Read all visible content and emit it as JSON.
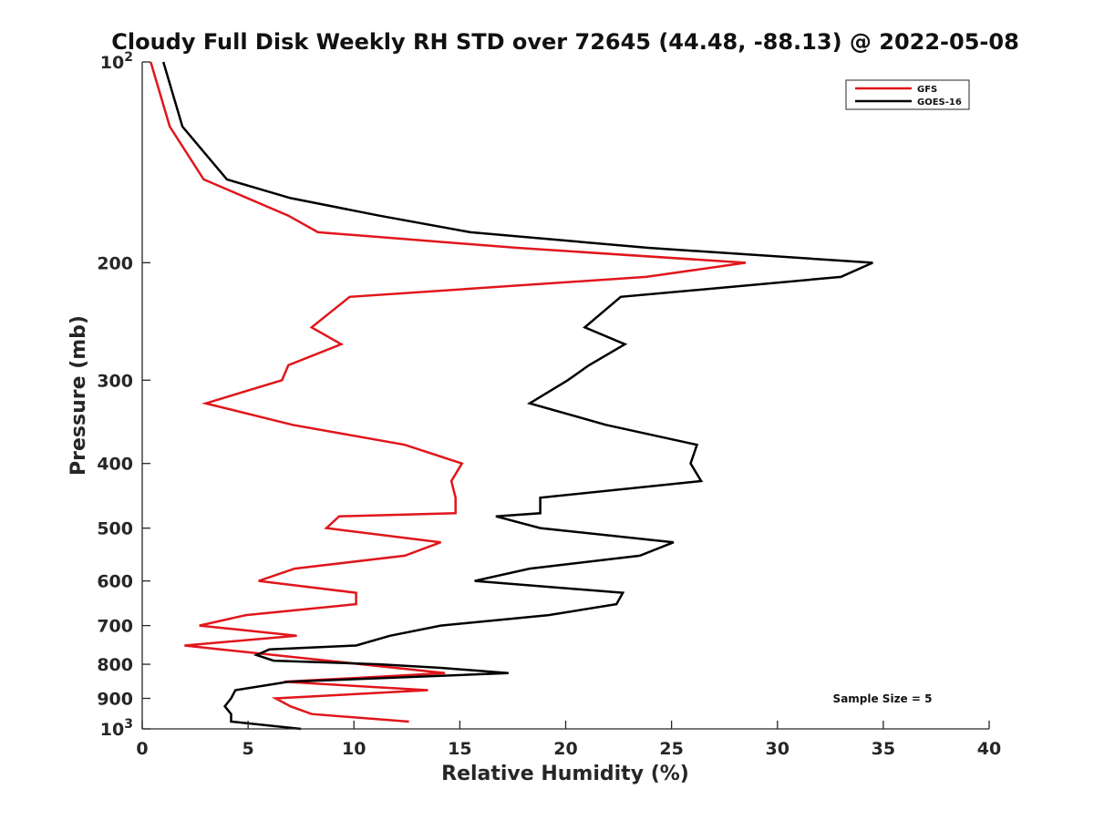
{
  "chart_data": {
    "type": "line",
    "title": "Cloudy Full Disk Weekly RH STD over 72645 (44.48, -88.13) @ 2022-05-08",
    "xlabel": "Relative Humidity (%)",
    "ylabel": "Pressure (mb)",
    "xlim": [
      0,
      40
    ],
    "ylim": [
      100,
      1000
    ],
    "yscale": "log",
    "y_reversed": true,
    "grid": false,
    "legend_position": "top-right",
    "x_ticks": [
      "0",
      "5",
      "10",
      "15",
      "20",
      "25",
      "30",
      "35",
      "40"
    ],
    "y_ticks": [
      {
        "value": 100,
        "label": "10",
        "sup": "2"
      },
      {
        "value": 200,
        "label": "200",
        "sup": ""
      },
      {
        "value": 300,
        "label": "300",
        "sup": ""
      },
      {
        "value": 400,
        "label": "400",
        "sup": ""
      },
      {
        "value": 500,
        "label": "500",
        "sup": ""
      },
      {
        "value": 600,
        "label": "600",
        "sup": ""
      },
      {
        "value": 700,
        "label": "700",
        "sup": ""
      },
      {
        "value": 800,
        "label": "800",
        "sup": ""
      },
      {
        "value": 900,
        "label": "900",
        "sup": ""
      },
      {
        "value": 1000,
        "label": "10",
        "sup": "3"
      }
    ],
    "series": [
      {
        "name": "GFS",
        "color": "#e0161b",
        "x": [
          0.4,
          1.3,
          2.9,
          6.9,
          8.3,
          17.7,
          28.5,
          23.8,
          9.8,
          8.0,
          9.4,
          6.9,
          6.6,
          3.0,
          7.1,
          12.4,
          15.1,
          14.6,
          14.8,
          14.8,
          9.3,
          8.7,
          14.1,
          12.4,
          7.2,
          5.5,
          10.1,
          10.1,
          4.9,
          2.7,
          7.3,
          2.0,
          14.3,
          6.7,
          13.5,
          6.3,
          7.0,
          8.0,
          12.6
        ],
        "y": [
          100,
          125,
          150,
          170,
          180,
          190,
          200,
          210,
          225,
          250,
          265,
          285,
          300,
          325,
          350,
          375,
          400,
          425,
          450,
          475,
          480,
          500,
          525,
          550,
          575,
          600,
          625,
          650,
          675,
          700,
          725,
          750,
          825,
          850,
          875,
          900,
          925,
          950,
          975
        ]
      },
      {
        "name": "GOES-16",
        "color": "#000000",
        "x": [
          1.0,
          1.9,
          4.0,
          7.0,
          11.2,
          15.5,
          23.9,
          34.5,
          33.0,
          22.6,
          20.9,
          22.8,
          21.1,
          20.1,
          18.3,
          21.9,
          26.2,
          25.9,
          26.4,
          18.8,
          18.8,
          16.7,
          18.8,
          25.1,
          23.5,
          18.3,
          15.7,
          22.7,
          22.4,
          19.2,
          14.1,
          11.7,
          10.1,
          6.0,
          5.4,
          6.2,
          11.2,
          14.1,
          17.3,
          6.9,
          4.4,
          4.2,
          3.9,
          4.2,
          4.2,
          7.5
        ],
        "y": [
          100,
          125,
          150,
          160,
          170,
          180,
          190,
          200,
          210,
          225,
          250,
          265,
          285,
          300,
          325,
          350,
          375,
          400,
          425,
          450,
          475,
          480,
          500,
          525,
          550,
          575,
          600,
          625,
          650,
          675,
          700,
          725,
          750,
          760,
          775,
          790,
          800,
          810,
          825,
          850,
          875,
          900,
          925,
          950,
          975,
          1000
        ]
      }
    ],
    "legend": [
      "GFS",
      "GOES-16"
    ],
    "annotations": [
      {
        "text": "Sample Size = 5"
      }
    ]
  }
}
